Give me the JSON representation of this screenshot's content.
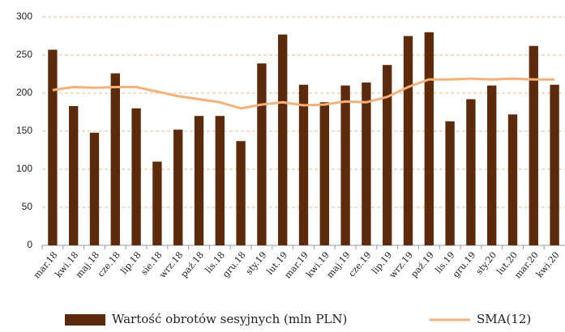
{
  "chart_data": {
    "type": "bar",
    "categories": [
      "mar.18",
      "kwi.18",
      "maj.18",
      "cze.18",
      "lip.18",
      "sie.18",
      "wrz.18",
      "paź.18",
      "lis.18",
      "gru.18",
      "sty.19",
      "lut.19",
      "mar.19",
      "kwi.19",
      "maj.19",
      "cze.19",
      "lip.19",
      "wrz.19",
      "paź.19",
      "lis.19",
      "gru.19",
      "sty.20",
      "lut.20",
      "mar.20",
      "kwi.20"
    ],
    "series": [
      {
        "name": "Wartość obrotów sesyjnych (mln PLN)",
        "type": "bar",
        "color": "#5c2a0c",
        "values": [
          257,
          183,
          148,
          226,
          180,
          110,
          152,
          170,
          170,
          137,
          239,
          277,
          211,
          188,
          210,
          214,
          237,
          275,
          280,
          163,
          192,
          210,
          172,
          262,
          211
        ]
      },
      {
        "name": "SMA(12)",
        "type": "line",
        "color": "#f6b07a",
        "values": [
          204,
          208,
          207,
          208,
          208,
          202,
          196,
          192,
          188,
          180,
          185,
          188,
          184,
          185,
          189,
          188,
          195,
          208,
          218,
          218,
          219,
          218,
          219,
          218,
          218
        ]
      }
    ],
    "ylim": [
      0,
      300
    ],
    "yticks": [
      0,
      50,
      100,
      150,
      200,
      250,
      300
    ],
    "grid": true,
    "legend": "bottom"
  }
}
